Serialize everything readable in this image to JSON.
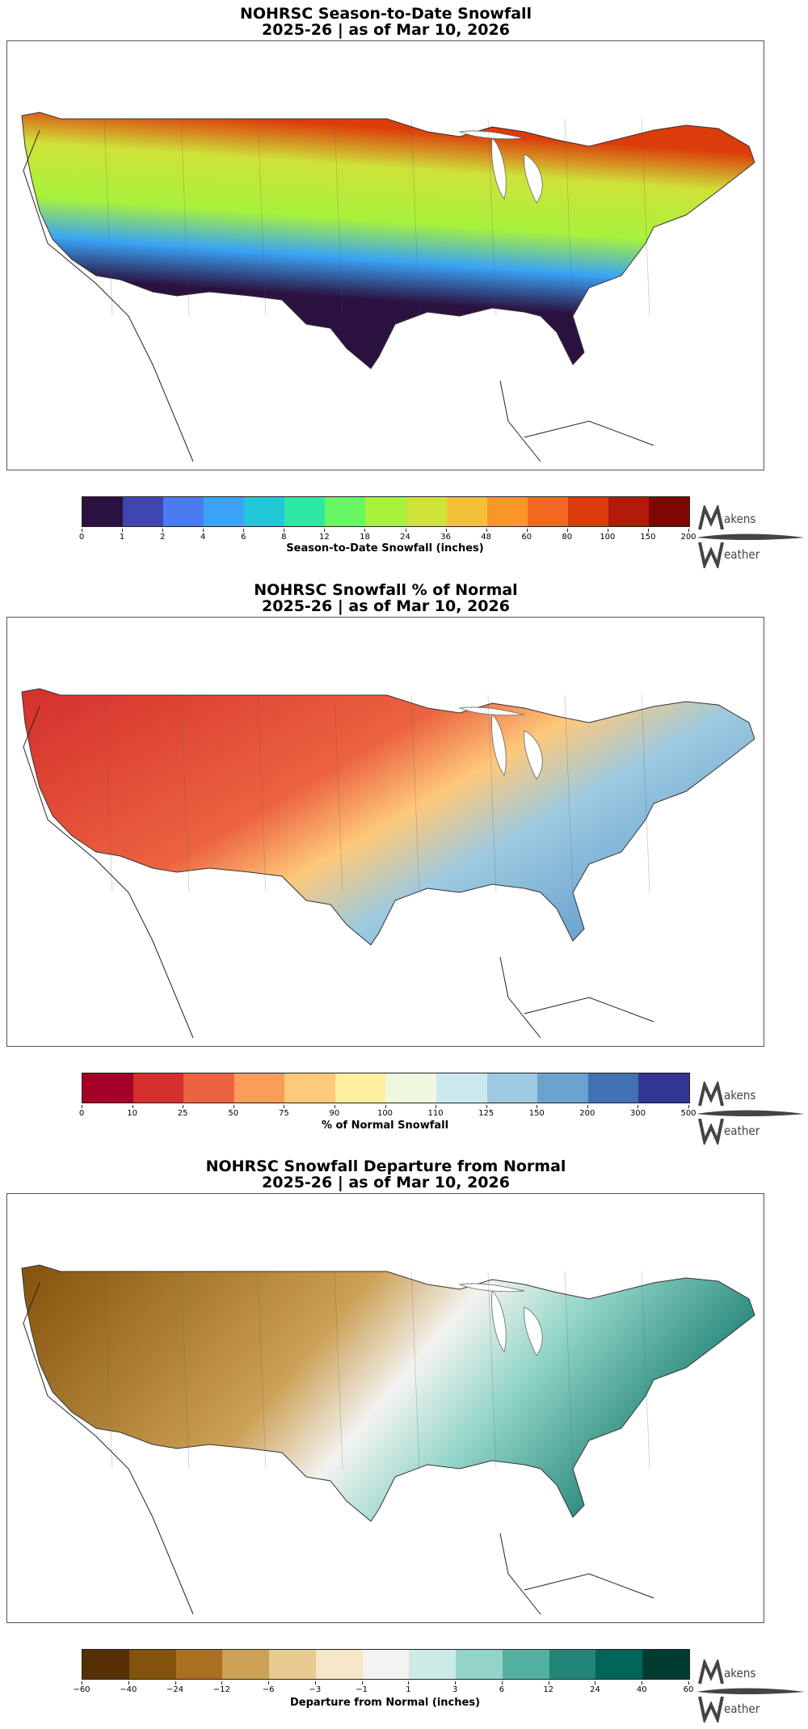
{
  "panels": [
    {
      "title_line1": "NOHRSC Season-to-Date Snowfall",
      "title_line2": "2025-26 | as of Mar 10, 2026",
      "colorbar_label": "Season-to-Date Snowfall (inches)",
      "ticks": [
        "0",
        "1",
        "2",
        "4",
        "6",
        "8",
        "12",
        "18",
        "24",
        "36",
        "48",
        "60",
        "80",
        "100",
        "150",
        "200"
      ],
      "colors": [
        "#2b1140",
        "#3f46b0",
        "#4a7cf0",
        "#3aa3f5",
        "#22c7d8",
        "#2ee7a3",
        "#66f763",
        "#a8f23c",
        "#cfe33a",
        "#f2c137",
        "#fa9728",
        "#f36820",
        "#dc3b0b",
        "#b11a08",
        "#7e0603"
      ],
      "map_palette": {
        "low": "#2b1140",
        "mid": "#3aa3f5",
        "high": "#b11a08"
      }
    },
    {
      "title_line1": "NOHRSC Snowfall % of Normal",
      "title_line2": "2025-26 | as of Mar 10, 2026",
      "colorbar_label": "% of Normal Snowfall",
      "ticks": [
        "0",
        "10",
        "25",
        "50",
        "75",
        "90",
        "100",
        "110",
        "125",
        "150",
        "200",
        "300",
        "500"
      ],
      "colors": [
        "#a50026",
        "#d42f2c",
        "#ec6340",
        "#f99d59",
        "#fec97a",
        "#fff0a0",
        "#eff8de",
        "#cde9f0",
        "#9dcae1",
        "#6aa2ce",
        "#4271b3",
        "#313695"
      ],
      "map_palette": {
        "low": "#d42f2c",
        "mid": "#fec97a",
        "high": "#4271b3"
      }
    },
    {
      "title_line1": "NOHRSC Snowfall Departure from Normal",
      "title_line2": "2025-26 | as of Mar 10, 2026",
      "colorbar_label": "Departure from Normal (inches)",
      "ticks": [
        "−60",
        "−40",
        "−24",
        "−12",
        "−6",
        "−3",
        "−1",
        "1",
        "3",
        "6",
        "12",
        "24",
        "40",
        "60"
      ],
      "colors": [
        "#553005",
        "#83520b",
        "#ab6f22",
        "#cca055",
        "#e7ca90",
        "#f5e7c5",
        "#f3f3f1",
        "#cdebe6",
        "#92d5c8",
        "#53b0a0",
        "#218476",
        "#016459",
        "#003c30"
      ],
      "map_palette": {
        "low": "#83520b",
        "mid": "#f3f3f1",
        "high": "#218476"
      }
    }
  ],
  "logo": {
    "line1": "akens",
    "line2": "eather"
  }
}
